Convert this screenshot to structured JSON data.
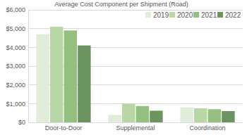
{
  "chart_data": {
    "type": "bar",
    "title": "Average Cost Component per Shipment (Road)",
    "categories": [
      "Door-to-Door",
      "Supplemental",
      "Coordination"
    ],
    "series": [
      {
        "name": "2019",
        "color": "#e2ecdb",
        "values": [
          4700,
          400,
          800
        ]
      },
      {
        "name": "2020",
        "color": "#b8d6a6",
        "values": [
          5100,
          1000,
          750
        ]
      },
      {
        "name": "2021",
        "color": "#93bf7f",
        "values": [
          4900,
          870,
          700
        ]
      },
      {
        "name": "2022",
        "color": "#6b9460",
        "values": [
          4100,
          620,
          600
        ]
      }
    ],
    "ylim": [
      0,
      6000
    ],
    "yticks": [
      {
        "value": 0,
        "label": "$0"
      },
      {
        "value": 1000,
        "label": "$1,000"
      },
      {
        "value": 2000,
        "label": "$2,000"
      },
      {
        "value": 3000,
        "label": "$3,000"
      },
      {
        "value": 4000,
        "label": "$4,000"
      },
      {
        "value": 5000,
        "label": "$5,000"
      },
      {
        "value": 6000,
        "label": "$6,000"
      }
    ],
    "grid": true,
    "legend": "top-right"
  }
}
